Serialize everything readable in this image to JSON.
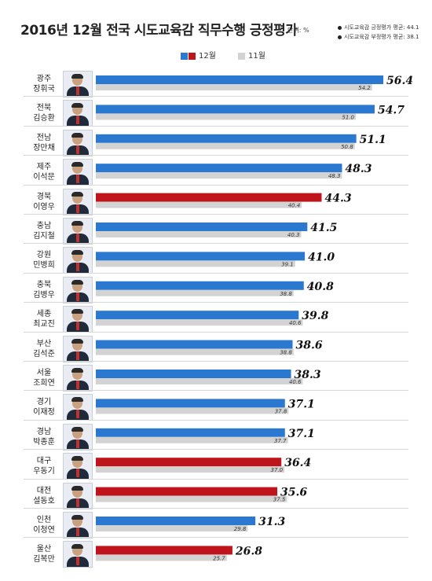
{
  "title": "2016년 12월 전국 시도교육감 직무수행 긍정평가",
  "unit": "단위: %",
  "notes": [
    "시도교육감 긍정평가 평균: 44.1",
    "시도교육감 부정평가 평균: 38.1"
  ],
  "colors": {
    "dec_blue": "#2b78d0",
    "dec_red": "#c0141c",
    "nov": "#d3d3d3"
  },
  "chart_data": {
    "type": "bar",
    "orientation": "horizontal",
    "title": "2016년 12월 전국 시도교육감 직무수행 긍정평가",
    "xlim": [
      0,
      60
    ],
    "legend": {
      "position": "top",
      "entries": [
        "12월",
        "11월"
      ]
    },
    "categories": [
      {
        "region": "광주",
        "name": "장휘국"
      },
      {
        "region": "전북",
        "name": "김승환"
      },
      {
        "region": "전남",
        "name": "장만채"
      },
      {
        "region": "제주",
        "name": "이석문"
      },
      {
        "region": "경북",
        "name": "이영우"
      },
      {
        "region": "충남",
        "name": "김지철"
      },
      {
        "region": "강원",
        "name": "민병희"
      },
      {
        "region": "충북",
        "name": "김병우"
      },
      {
        "region": "세종",
        "name": "최교진"
      },
      {
        "region": "부산",
        "name": "김석준"
      },
      {
        "region": "서울",
        "name": "조희연"
      },
      {
        "region": "경기",
        "name": "이재정"
      },
      {
        "region": "경남",
        "name": "박종훈"
      },
      {
        "region": "대구",
        "name": "우동기"
      },
      {
        "region": "대전",
        "name": "설동호"
      },
      {
        "region": "인천",
        "name": "이청연"
      },
      {
        "region": "울산",
        "name": "김복만"
      }
    ],
    "series": [
      {
        "name": "12월",
        "values": [
          "56.4",
          "54.7",
          "51.1",
          "48.3",
          "44.3",
          "41.5",
          "41.0",
          "40.8",
          "39.8",
          "38.6",
          "38.3",
          "37.1",
          "37.1",
          "36.4",
          "35.6",
          "31.3",
          "26.8"
        ],
        "bar_color": [
          "blue",
          "blue",
          "blue",
          "blue",
          "red",
          "blue",
          "blue",
          "blue",
          "blue",
          "blue",
          "blue",
          "blue",
          "blue",
          "red",
          "red",
          "blue",
          "red"
        ]
      },
      {
        "name": "11월",
        "values": [
          "54.2",
          "51.0",
          "50.8",
          "48.3",
          "40.4",
          "40.3",
          "39.1",
          "38.8",
          "40.6",
          "38.8",
          "40.6",
          "37.8",
          "37.7",
          "37.0",
          "37.5",
          "29.8",
          "25.7"
        ]
      }
    ]
  }
}
